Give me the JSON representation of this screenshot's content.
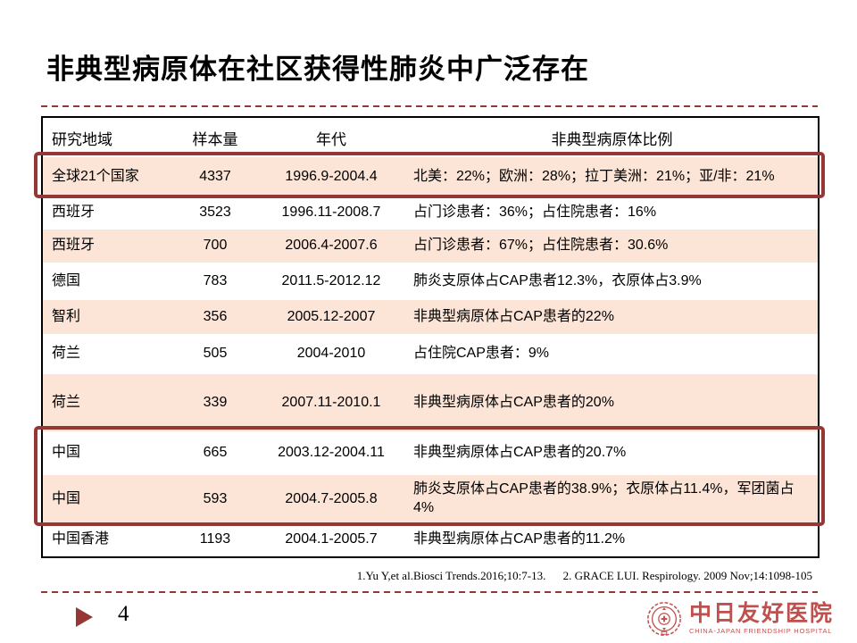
{
  "slide": {
    "title": "非典型病原体在社区获得性肺炎中广泛存在",
    "page_number": "4",
    "references": [
      "1.Yu Y,et al.Biosci Trends.2016;10:7-13.",
      "2. GRACE LUI. Respirology. 2009 Nov;14:1098-105"
    ],
    "logo": {
      "name_cn": "中日友好医院",
      "name_en": "CHINA-JAPAN FRIENDSHIP HOSPITAL"
    }
  },
  "table": {
    "headers": [
      "研究地域",
      "样本量",
      "年代",
      "非典型病原体比例"
    ],
    "rows": [
      {
        "region": "全球21个国家",
        "sample": "4337",
        "period": "1996.9-2004.4",
        "proportion": "北美：22%；欧洲：28%；拉丁美洲：21%；亚/非：21%",
        "shaded": true,
        "highlighted": true
      },
      {
        "region": "西班牙",
        "sample": "3523",
        "period": "1996.11-2008.7",
        "proportion": "占门诊患者：36%；占住院患者：16%",
        "shaded": false,
        "highlighted": false
      },
      {
        "region": "西班牙",
        "sample": "700",
        "period": "2006.4-2007.6",
        "proportion": "占门诊患者：67%；占住院患者：30.6%",
        "shaded": true,
        "highlighted": false
      },
      {
        "region": "德国",
        "sample": "783",
        "period": "2011.5-2012.12",
        "proportion": "肺炎支原体占CAP患者12.3%，衣原体占3.9%",
        "shaded": false,
        "highlighted": false
      },
      {
        "region": "智利",
        "sample": "356",
        "period": "2005.12-2007",
        "proportion": "非典型病原体占CAP患者的22%",
        "shaded": true,
        "highlighted": false
      },
      {
        "region": "荷兰",
        "sample": "505",
        "period": "2004-2010",
        "proportion": "占住院CAP患者：9%",
        "shaded": false,
        "highlighted": false
      },
      {
        "region": "荷兰",
        "sample": "339",
        "period": "2007.11-2010.1",
        "proportion": "非典型病原体占CAP患者的20%",
        "shaded": true,
        "highlighted": false
      },
      {
        "region": "中国",
        "sample": "665",
        "period": "2003.12-2004.11",
        "proportion": "非典型病原体占CAP患者的20.7%",
        "shaded": false,
        "highlighted": true
      },
      {
        "region": "中国",
        "sample": "593",
        "period": "2004.7-2005.8",
        "proportion": "肺炎支原体占CAP患者的38.9%；衣原体占11.4%，军团菌占4%",
        "shaded": true,
        "highlighted": true
      },
      {
        "region": "中国香港",
        "sample": "1193",
        "period": "2004.1-2005.7",
        "proportion": "非典型病原体占CAP患者的11.2%",
        "shaded": false,
        "highlighted": false
      }
    ]
  },
  "icons": {
    "footer_arrow": "triangle-right",
    "hospital_emblem": "circular-seal-with-cross"
  },
  "colors": {
    "accent_red": "#953735",
    "row_shade": "#FCE4D6",
    "logo_red": "#C0504D",
    "table_border": "#000000"
  }
}
